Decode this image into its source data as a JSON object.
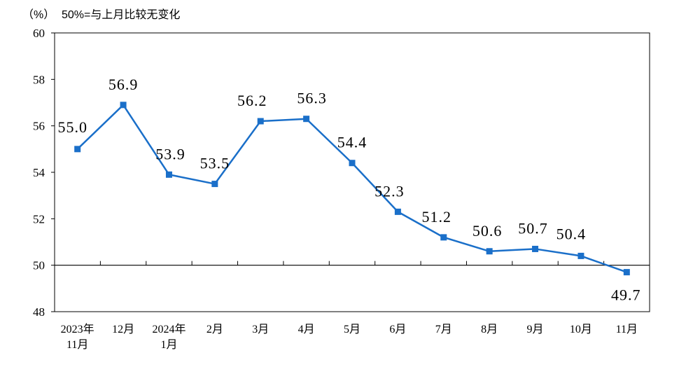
{
  "header": {
    "unit": "（%）",
    "note": "50%=与上月比较无变化"
  },
  "chart_data": {
    "type": "line",
    "title": "",
    "xlabel": "",
    "ylabel": "（%）",
    "ylim": [
      48,
      60
    ],
    "yticks": [
      "48",
      "50",
      "52",
      "54",
      "56",
      "58",
      "60"
    ],
    "reference_line": 50,
    "grid": false,
    "categories": [
      [
        "2023年",
        "11月"
      ],
      [
        "12月"
      ],
      [
        "2024年",
        "1月"
      ],
      [
        "2月"
      ],
      [
        "3月"
      ],
      [
        "4月"
      ],
      [
        "5月"
      ],
      [
        "6月"
      ],
      [
        "7月"
      ],
      [
        "8月"
      ],
      [
        "9月"
      ],
      [
        "10月"
      ],
      [
        "11月"
      ]
    ],
    "series": [
      {
        "color": "#1a6fc9",
        "marker": "square",
        "values": [
          55.0,
          56.9,
          53.9,
          53.5,
          56.2,
          56.3,
          54.4,
          52.3,
          51.2,
          50.6,
          50.7,
          50.4,
          49.7
        ],
        "labels": [
          "55.0",
          "56.9",
          "53.9",
          "53.5",
          "56.2",
          "56.3",
          "54.4",
          "52.3",
          "51.2",
          "50.6",
          "50.7",
          "50.4",
          "49.7"
        ]
      }
    ]
  }
}
